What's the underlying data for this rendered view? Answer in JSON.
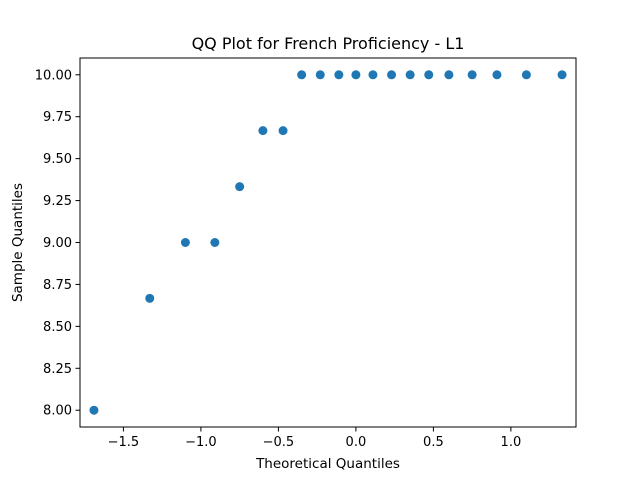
{
  "chart_data": {
    "type": "scatter",
    "title": "QQ Plot for French Proficiency - L1",
    "xlabel": "Theoretical Quantiles",
    "ylabel": "Sample Quantiles",
    "xlim": [
      -1.78,
      1.42
    ],
    "ylim": [
      7.9,
      10.1
    ],
    "x_ticks": [
      -1.5,
      -1.0,
      -0.5,
      0.0,
      0.5,
      1.0
    ],
    "x_tick_labels": [
      "−1.5",
      "−1.0",
      "−0.5",
      "0.0",
      "0.5",
      "1.0"
    ],
    "y_ticks": [
      8.0,
      8.25,
      8.5,
      8.75,
      9.0,
      9.25,
      9.5,
      9.75,
      10.0
    ],
    "y_tick_labels": [
      "8.00",
      "8.25",
      "8.50",
      "8.75",
      "9.00",
      "9.25",
      "9.50",
      "9.75",
      "10.00"
    ],
    "grid": false,
    "marker_color": "#1f77b4",
    "points": [
      {
        "x": -1.69,
        "y": 8.0
      },
      {
        "x": -1.33,
        "y": 8.667
      },
      {
        "x": -1.1,
        "y": 9.0
      },
      {
        "x": -0.91,
        "y": 9.0
      },
      {
        "x": -0.75,
        "y": 9.333
      },
      {
        "x": -0.6,
        "y": 9.667
      },
      {
        "x": -0.47,
        "y": 9.667
      },
      {
        "x": -0.35,
        "y": 10.0
      },
      {
        "x": -0.23,
        "y": 10.0
      },
      {
        "x": -0.11,
        "y": 10.0
      },
      {
        "x": 0.0,
        "y": 10.0
      },
      {
        "x": 0.11,
        "y": 10.0
      },
      {
        "x": 0.23,
        "y": 10.0
      },
      {
        "x": 0.35,
        "y": 10.0
      },
      {
        "x": 0.47,
        "y": 10.0
      },
      {
        "x": 0.6,
        "y": 10.0
      },
      {
        "x": 0.75,
        "y": 10.0
      },
      {
        "x": 0.91,
        "y": 10.0
      },
      {
        "x": 1.1,
        "y": 10.0
      },
      {
        "x": 1.33,
        "y": 10.0
      }
    ]
  }
}
